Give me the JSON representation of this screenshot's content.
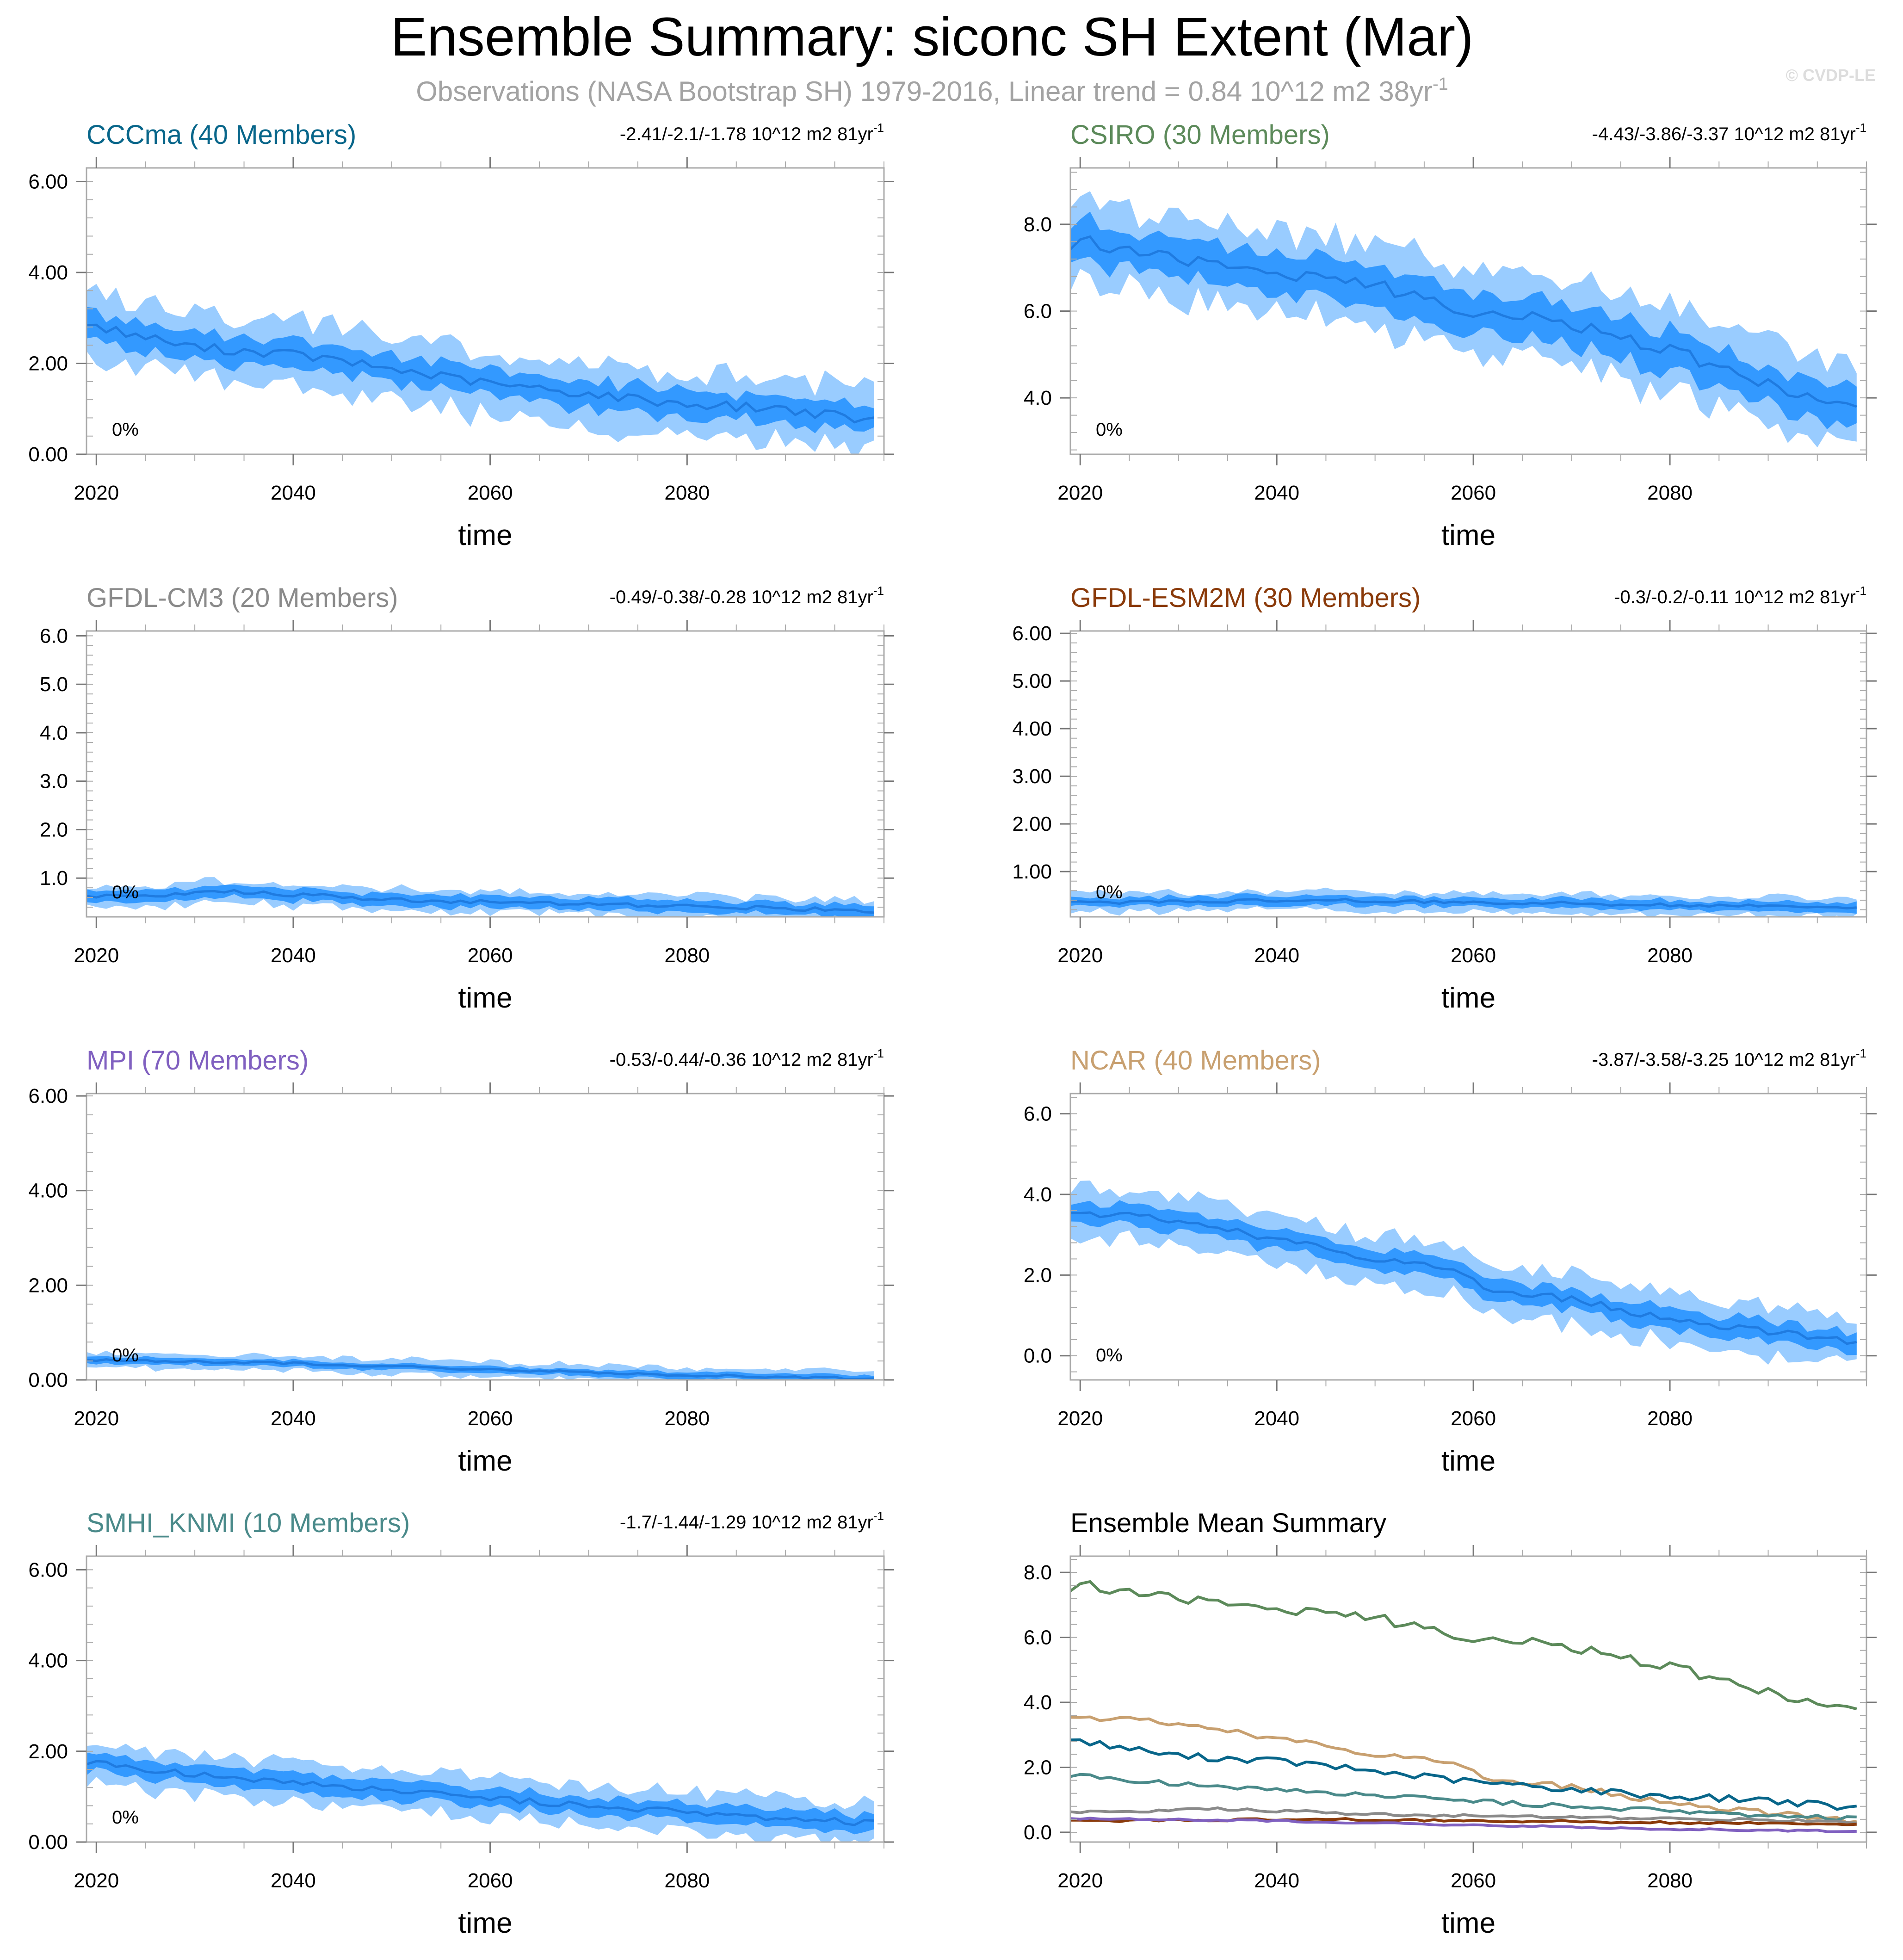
{
  "page": {
    "title": "Ensemble Summary: siconc SH Extent (Mar)",
    "subtitle": "Observations (NASA Bootstrap SH) 1979-2016, Linear trend = 0.84 10^12 m2 38yr",
    "subtitle_superscript": "-1",
    "watermark": "© CVDP-LE",
    "trend_unit_suffix": "81yr",
    "trend_unit_superscript": "-1",
    "pct_label": "0%"
  },
  "colors": {
    "band_outer": "#99ccff",
    "band_inner": "#3399ff",
    "mean_line": "#1f7be0",
    "frame": "#aaaaaa",
    "text": "#000000",
    "subtitle": "#a3a3a3",
    "watermark": "#dddddd",
    "CCCma": "#08668a",
    "CSIRO": "#5c8a5a",
    "GFDL-CM3": "#8a8a8a",
    "GFDL-ESM2M": "#8a3a0a",
    "MPI": "#8060c0",
    "NCAR": "#c8a070",
    "SMHI_KNMI": "#4a8a8a"
  },
  "chart_data": [
    {
      "type": "area",
      "model": "CCCma",
      "title": "CCCma (40 Members)",
      "trend": "-2.41/-2.1/-1.78 10^12 m2 81yr",
      "xlabel": "time",
      "xlim": [
        2019,
        2100
      ],
      "ylim": [
        0,
        6.3
      ],
      "yticks": [
        "0.00",
        "2.00",
        "4.00",
        "6.00"
      ],
      "xticks": [
        "2020",
        "2040",
        "2060",
        "2080"
      ],
      "mean_anchors": [
        [
          2019,
          2.85
        ],
        [
          2030,
          2.35
        ],
        [
          2040,
          2.2
        ],
        [
          2060,
          1.55
        ],
        [
          2080,
          1.1
        ],
        [
          2090,
          1.0
        ],
        [
          2099,
          0.72
        ]
      ],
      "inner_halfwidth": 0.3,
      "outer_halfwidth": 0.7
    },
    {
      "type": "area",
      "model": "CSIRO",
      "title": "CSIRO (30 Members)",
      "trend": "-4.43/-3.86/-3.37 10^12 m2 81yr",
      "xlabel": "time",
      "xlim": [
        2019,
        2100
      ],
      "ylim": [
        2.7,
        9.3
      ],
      "yticks": [
        "4.0",
        "6.0",
        "8.0"
      ],
      "xticks": [
        "2020",
        "2040",
        "2060",
        "2080"
      ],
      "mean_anchors": [
        [
          2019,
          7.4
        ],
        [
          2021,
          7.6
        ],
        [
          2030,
          7.2
        ],
        [
          2040,
          6.9
        ],
        [
          2050,
          6.6
        ],
        [
          2060,
          6.0
        ],
        [
          2070,
          5.7
        ],
        [
          2080,
          5.1
        ],
        [
          2090,
          4.3
        ],
        [
          2099,
          3.7
        ]
      ],
      "inner_halfwidth": 0.45,
      "outer_halfwidth": 0.95
    },
    {
      "type": "area",
      "model": "GFDL-CM3",
      "title": "GFDL-CM3 (20 Members)",
      "trend": "-0.49/-0.38/-0.28 10^12 m2 81yr",
      "xlabel": "time",
      "xlim": [
        2019,
        2100
      ],
      "ylim": [
        0.2,
        6.1
      ],
      "yticks": [
        "1.0",
        "2.0",
        "3.0",
        "4.0",
        "5.0",
        "6.0"
      ],
      "xticks": [
        "2020",
        "2040",
        "2060",
        "2080"
      ],
      "mean_anchors": [
        [
          2019,
          0.6
        ],
        [
          2035,
          0.72
        ],
        [
          2050,
          0.55
        ],
        [
          2070,
          0.45
        ],
        [
          2090,
          0.38
        ],
        [
          2099,
          0.3
        ]
      ],
      "inner_halfwidth": 0.12,
      "outer_halfwidth": 0.22
    },
    {
      "type": "area",
      "model": "GFDL-ESM2M",
      "title": "GFDL-ESM2M (30 Members)",
      "trend": "-0.3/-0.2/-0.11 10^12 m2 81yr",
      "xlabel": "time",
      "xlim": [
        2019,
        2100
      ],
      "ylim": [
        0.05,
        6.05
      ],
      "yticks": [
        "1.00",
        "2.00",
        "3.00",
        "4.00",
        "5.00",
        "6.00"
      ],
      "xticks": [
        "2020",
        "2040",
        "2060",
        "2080"
      ],
      "mean_anchors": [
        [
          2019,
          0.35
        ],
        [
          2045,
          0.4
        ],
        [
          2070,
          0.33
        ],
        [
          2099,
          0.25
        ]
      ],
      "inner_halfwidth": 0.1,
      "outer_halfwidth": 0.2
    },
    {
      "type": "area",
      "model": "MPI",
      "title": "MPI (70 Members)",
      "trend": "-0.53/-0.44/-0.36 10^12 m2 81yr",
      "xlabel": "time",
      "xlim": [
        2019,
        2100
      ],
      "ylim": [
        0,
        6.05
      ],
      "yticks": [
        "0.00",
        "2.00",
        "4.00",
        "6.00"
      ],
      "xticks": [
        "2020",
        "2040",
        "2060",
        "2080"
      ],
      "mean_anchors": [
        [
          2019,
          0.42
        ],
        [
          2040,
          0.35
        ],
        [
          2060,
          0.22
        ],
        [
          2080,
          0.1
        ],
        [
          2099,
          0.03
        ]
      ],
      "inner_halfwidth": 0.07,
      "outer_halfwidth": 0.16
    },
    {
      "type": "area",
      "model": "NCAR",
      "title": "NCAR (40 Members)",
      "trend": "-3.87/-3.58/-3.25 10^12 m2 81yr",
      "xlabel": "time",
      "xlim": [
        2019,
        2100
      ],
      "ylim": [
        -0.6,
        6.5
      ],
      "yticks": [
        "0.0",
        "2.0",
        "4.0",
        "6.0"
      ],
      "xticks": [
        "2020",
        "2040",
        "2060",
        "2080"
      ],
      "mean_anchors": [
        [
          2019,
          3.55
        ],
        [
          2025,
          3.5
        ],
        [
          2030,
          3.3
        ],
        [
          2040,
          2.9
        ],
        [
          2050,
          2.4
        ],
        [
          2058,
          2.2
        ],
        [
          2062,
          1.6
        ],
        [
          2070,
          1.4
        ],
        [
          2080,
          0.9
        ],
        [
          2090,
          0.6
        ],
        [
          2099,
          0.35
        ]
      ],
      "inner_halfwidth": 0.25,
      "outer_halfwidth": 0.6
    },
    {
      "type": "area",
      "model": "SMHI_KNMI",
      "title": "SMHI_KNMI (10 Members)",
      "trend": "-1.7/-1.44/-1.29 10^12 m2 81yr",
      "xlabel": "time",
      "xlim": [
        2019,
        2100
      ],
      "ylim": [
        0,
        6.3
      ],
      "yticks": [
        "0.00",
        "2.00",
        "4.00",
        "6.00"
      ],
      "xticks": [
        "2020",
        "2040",
        "2060",
        "2080"
      ],
      "mean_anchors": [
        [
          2019,
          1.75
        ],
        [
          2030,
          1.5
        ],
        [
          2040,
          1.3
        ],
        [
          2060,
          0.95
        ],
        [
          2080,
          0.65
        ],
        [
          2099,
          0.42
        ]
      ],
      "inner_halfwidth": 0.2,
      "outer_halfwidth": 0.45
    },
    {
      "type": "line",
      "title": "Ensemble Mean Summary",
      "xlabel": "time",
      "xlim": [
        2019,
        2100
      ],
      "ylim": [
        -0.3,
        8.5
      ],
      "yticks": [
        "0.0",
        "2.0",
        "4.0",
        "6.0",
        "8.0"
      ],
      "xticks": [
        "2020",
        "2040",
        "2060",
        "2080"
      ],
      "series": [
        "CSIRO",
        "NCAR",
        "CCCma",
        "SMHI_KNMI",
        "GFDL-CM3",
        "GFDL-ESM2M",
        "MPI"
      ]
    }
  ]
}
